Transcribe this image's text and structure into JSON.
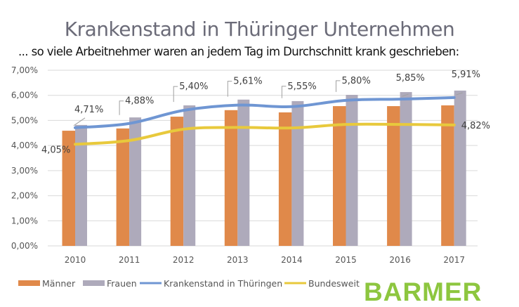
{
  "title": "Krankenstand in Thüringer Unternehmen",
  "subtitle": "... so viele Arbeitnehmer waren an jedem Tag im Durchschnitt krank geschrieben:",
  "logo": "BARMER",
  "colors": {
    "maenner": "#e0894a",
    "frauen": "#aeaabb",
    "thueringen": "#6f96d3",
    "bundesweit": "#e8c93c",
    "grid": "#d9d9d9",
    "logo": "#8dc63f"
  },
  "chart_data": {
    "type": "bar",
    "title": "Krankenstand in Thüringer Unternehmen",
    "xlabel": "",
    "ylabel": "",
    "ylim": [
      0,
      7
    ],
    "grid": true,
    "legend_position": "bottom",
    "yticks": [
      "0,00%",
      "1,00%",
      "2,00%",
      "3,00%",
      "4,00%",
      "5,00%",
      "6,00%",
      "7,00%"
    ],
    "categories": [
      "2010",
      "2011",
      "2012",
      "2013",
      "2014",
      "2015",
      "2016",
      "2017"
    ],
    "series": [
      {
        "name": "Männer",
        "kind": "bar",
        "values": [
          4.59,
          4.68,
          5.15,
          5.41,
          5.32,
          5.57,
          5.57,
          5.6
        ]
      },
      {
        "name": "Frauen",
        "kind": "bar",
        "values": [
          4.82,
          5.12,
          5.6,
          5.83,
          5.77,
          6.02,
          6.13,
          6.19
        ]
      },
      {
        "name": "Krankenstand in Thüringen",
        "kind": "line",
        "values": [
          4.71,
          4.88,
          5.4,
          5.61,
          5.55,
          5.8,
          5.85,
          5.91
        ],
        "labels": [
          "4,71%",
          "4,88%",
          "5,40%",
          "5,61%",
          "5,55%",
          "5,80%",
          "5,85%",
          "5,91%"
        ]
      },
      {
        "name": "Bundesweit",
        "kind": "line",
        "values": [
          4.05,
          4.2,
          4.65,
          4.72,
          4.7,
          4.84,
          4.84,
          4.82
        ],
        "labels": [
          "4,05%",
          "",
          "",
          "",
          "",
          "",
          "",
          "4,82%"
        ]
      }
    ]
  }
}
